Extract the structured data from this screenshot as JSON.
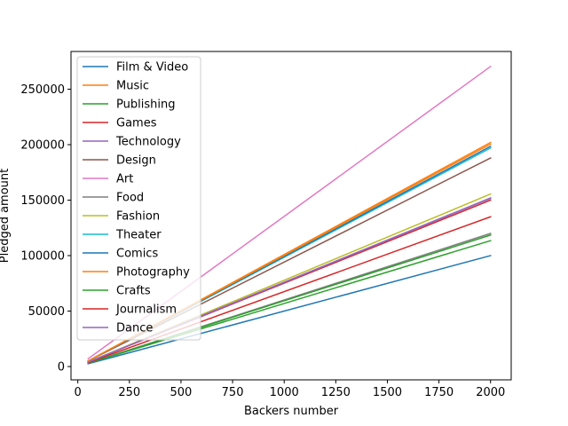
{
  "chart_data": {
    "type": "line",
    "title": "",
    "xlabel": "Backers number",
    "ylabel": "Pledged amount",
    "xlim": [
      -33,
      2100
    ],
    "ylim": [
      -12000,
      284000
    ],
    "xticks": [
      0,
      250,
      500,
      750,
      1000,
      1250,
      1500,
      1750,
      2000
    ],
    "yticks": [
      0,
      50000,
      100000,
      150000,
      200000,
      250000
    ],
    "grid": false,
    "legend_position": "upper-left",
    "x": [
      50,
      2000
    ],
    "series": [
      {
        "name": "Film & Video",
        "color": "#1f77b4",
        "values": [
          2500,
          100000
        ]
      },
      {
        "name": "Music",
        "color": "#ff7f0e",
        "values": [
          5000,
          202000
        ]
      },
      {
        "name": "Publishing",
        "color": "#2ca02c",
        "values": [
          3000,
          113500
        ]
      },
      {
        "name": "Games",
        "color": "#d62728",
        "values": [
          4000,
          150000
        ]
      },
      {
        "name": "Technology",
        "color": "#9467bd",
        "values": [
          4000,
          151500
        ]
      },
      {
        "name": "Design",
        "color": "#8c564b",
        "values": [
          5000,
          188000
        ]
      },
      {
        "name": "Art",
        "color": "#e377c2",
        "values": [
          7000,
          270500
        ]
      },
      {
        "name": "Food",
        "color": "#7f7f7f",
        "values": [
          3000,
          120000
        ]
      },
      {
        "name": "Fashion",
        "color": "#bcbd22",
        "values": [
          4000,
          155500
        ]
      },
      {
        "name": "Theater",
        "color": "#17becf",
        "values": [
          5000,
          197000
        ]
      },
      {
        "name": "Comics",
        "color": "#1f77b4",
        "values": [
          5000,
          198500
        ]
      },
      {
        "name": "Photography",
        "color": "#ff7f0e",
        "values": [
          5000,
          200500
        ]
      },
      {
        "name": "Crafts",
        "color": "#2ca02c",
        "values": [
          3000,
          118500
        ]
      },
      {
        "name": "Journalism",
        "color": "#d62728",
        "values": [
          3500,
          135000
        ]
      },
      {
        "name": "Dance",
        "color": "#9467bd",
        "values": [
          4000,
          152000
        ]
      }
    ]
  }
}
